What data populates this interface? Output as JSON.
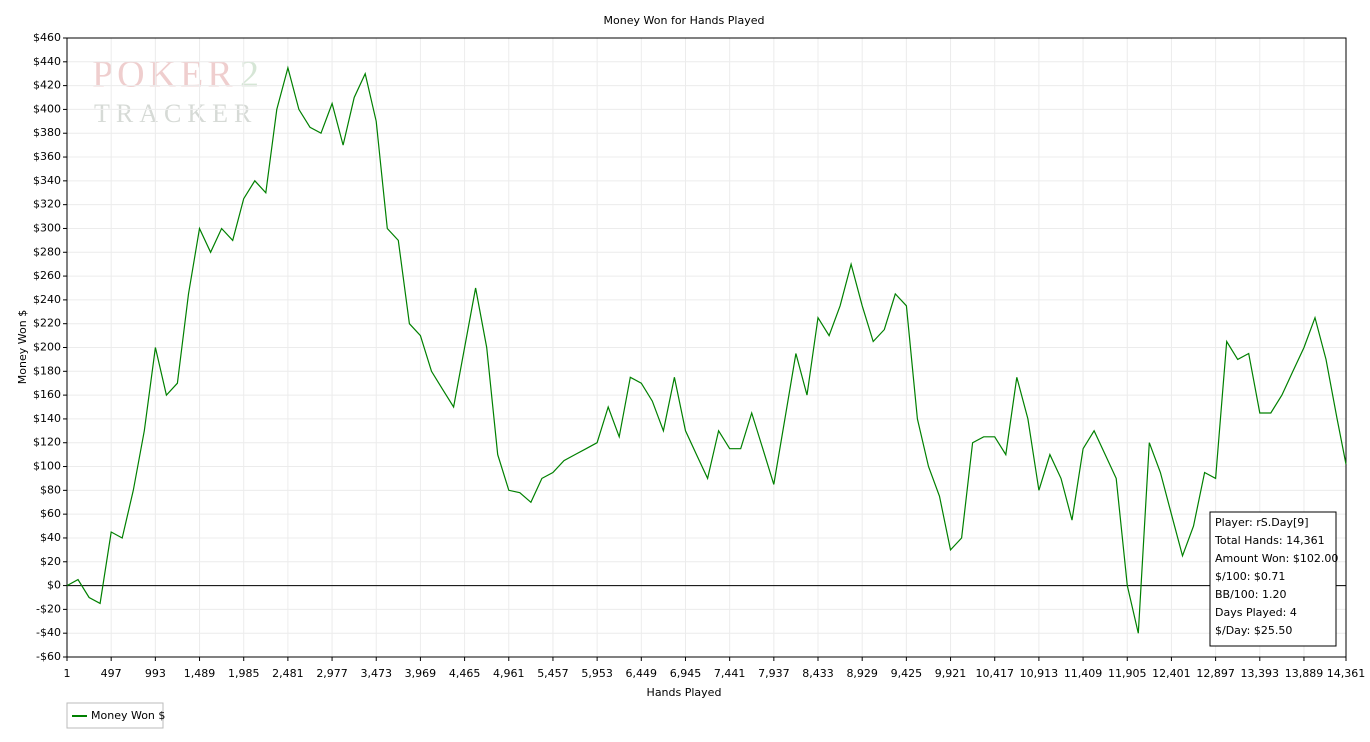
{
  "chart_data": {
    "type": "line",
    "title": "Money Won for Hands Played",
    "x_label": "Hands Played",
    "y_label": "Money Won $",
    "watermark": [
      "POKER",
      "TRACKER",
      "2"
    ],
    "annotations": [
      "Player: rS.Day[9]",
      "Total Hands: 14,361",
      "Amount Won: $102.00",
      "$/100: $0.71",
      "BB/100: 1.20",
      "Days Played: 4",
      "$/Day: $25.50"
    ],
    "x": [
      1,
      125,
      249,
      373,
      497,
      621,
      745,
      869,
      993,
      1117,
      1241,
      1365,
      1489,
      1613,
      1737,
      1861,
      1985,
      2109,
      2233,
      2357,
      2481,
      2605,
      2729,
      2853,
      2977,
      3101,
      3225,
      3349,
      3473,
      3597,
      3721,
      3845,
      3969,
      4093,
      4217,
      4341,
      4465,
      4589,
      4713,
      4837,
      4961,
      5085,
      5209,
      5333,
      5457,
      5581,
      5705,
      5829,
      5953,
      6077,
      6201,
      6325,
      6449,
      6573,
      6697,
      6821,
      6945,
      7069,
      7193,
      7317,
      7441,
      7565,
      7689,
      7813,
      7937,
      8061,
      8185,
      8309,
      8433,
      8557,
      8681,
      8805,
      8929,
      9053,
      9177,
      9301,
      9425,
      9549,
      9673,
      9797,
      9921,
      10045,
      10169,
      10293,
      10417,
      10541,
      10665,
      10789,
      10913,
      11037,
      11161,
      11285,
      11409,
      11533,
      11657,
      11781,
      11905,
      12029,
      12153,
      12277,
      12401,
      12525,
      12649,
      12773,
      12897,
      13021,
      13145,
      13269,
      13393,
      13517,
      13641,
      13765,
      13889,
      14013,
      14137,
      14261,
      14361
    ],
    "series": [
      {
        "name": "Money Won $",
        "color": "#008000",
        "values": [
          0,
          5,
          -10,
          -15,
          45,
          40,
          80,
          130,
          200,
          160,
          170,
          245,
          300,
          280,
          300,
          290,
          325,
          340,
          330,
          400,
          435,
          400,
          385,
          380,
          405,
          370,
          410,
          430,
          390,
          300,
          290,
          220,
          210,
          180,
          165,
          150,
          200,
          250,
          200,
          110,
          80,
          78,
          70,
          90,
          95,
          105,
          110,
          115,
          120,
          150,
          125,
          175,
          170,
          155,
          130,
          175,
          130,
          110,
          90,
          130,
          115,
          115,
          145,
          115,
          85,
          140,
          195,
          160,
          225,
          210,
          235,
          270,
          235,
          205,
          215,
          245,
          235,
          140,
          100,
          75,
          30,
          40,
          120,
          125,
          125,
          110,
          175,
          140,
          80,
          110,
          90,
          55,
          115,
          130,
          110,
          90,
          0,
          -40,
          120,
          95,
          60,
          25,
          50,
          95,
          90,
          205,
          190,
          195,
          145,
          145,
          160,
          180,
          200,
          225,
          190,
          140,
          102
        ]
      }
    ],
    "xlim": [
      1,
      14361
    ],
    "xticks": [
      1,
      497,
      {
        "value": 993,
        "label": "993"
      },
      {
        "value": 1489,
        "label": "1,489"
      },
      {
        "value": 1985,
        "label": "1,985"
      },
      {
        "value": 2481,
        "label": "2,481"
      },
      {
        "value": 2977,
        "label": "2,977"
      },
      {
        "value": 3473,
        "label": "3,473"
      },
      {
        "value": 3969,
        "label": "3,969"
      },
      {
        "value": 4465,
        "label": "4,465"
      },
      {
        "value": 4961,
        "label": "4,961"
      },
      {
        "value": 5457,
        "label": "5,457"
      },
      {
        "value": 5953,
        "label": "5,953"
      },
      {
        "value": 6449,
        "label": "6,449"
      },
      {
        "value": 6945,
        "label": "6,945"
      },
      {
        "value": 7441,
        "label": "7,441"
      },
      {
        "value": 7937,
        "label": "7,937"
      },
      {
        "value": 8433,
        "label": "8,433"
      },
      {
        "value": 8929,
        "label": "8,929"
      },
      {
        "value": 9425,
        "label": "9,425"
      },
      {
        "value": 9921,
        "label": "9,921"
      },
      {
        "value": 10417,
        "label": "10,417"
      },
      {
        "value": 10913,
        "label": "10,913"
      },
      {
        "value": 11409,
        "label": "11,409"
      },
      {
        "value": 11905,
        "label": "11,905"
      },
      {
        "value": 12401,
        "label": "12,401"
      },
      {
        "value": 12897,
        "label": "12,897"
      },
      {
        "value": 13393,
        "label": "13,393"
      },
      {
        "value": 13889,
        "label": "13,889"
      },
      {
        "value": 14361,
        "label": "14,361"
      }
    ],
    "ylim": [
      -60,
      460
    ],
    "yticks": [
      {
        "value": -60,
        "label": "-$60"
      },
      {
        "value": -40,
        "label": "-$40"
      },
      {
        "value": -20,
        "label": "-$20"
      },
      {
        "value": 0,
        "label": "$0"
      },
      {
        "value": 20,
        "label": "$20"
      },
      {
        "value": 40,
        "label": "$40"
      },
      {
        "value": 60,
        "label": "$60"
      },
      {
        "value": 80,
        "label": "$80"
      },
      {
        "value": 100,
        "label": "$100"
      },
      {
        "value": 120,
        "label": "$120"
      },
      {
        "value": 140,
        "label": "$140"
      },
      {
        "value": 160,
        "label": "$160"
      },
      {
        "value": 180,
        "label": "$180"
      },
      {
        "value": 200,
        "label": "$200"
      },
      {
        "value": 220,
        "label": "$220"
      },
      {
        "value": 240,
        "label": "$240"
      },
      {
        "value": 260,
        "label": "$260"
      },
      {
        "value": 280,
        "label": "$280"
      },
      {
        "value": 300,
        "label": "$300"
      },
      {
        "value": 320,
        "label": "$320"
      },
      {
        "value": 340,
        "label": "$340"
      },
      {
        "value": 360,
        "label": "$360"
      },
      {
        "value": 380,
        "label": "$380"
      },
      {
        "value": 400,
        "label": "$400"
      },
      {
        "value": 420,
        "label": "$420"
      },
      {
        "value": 440,
        "label": "$440"
      },
      {
        "value": 460,
        "label": "$460"
      }
    ],
    "grid": true
  }
}
